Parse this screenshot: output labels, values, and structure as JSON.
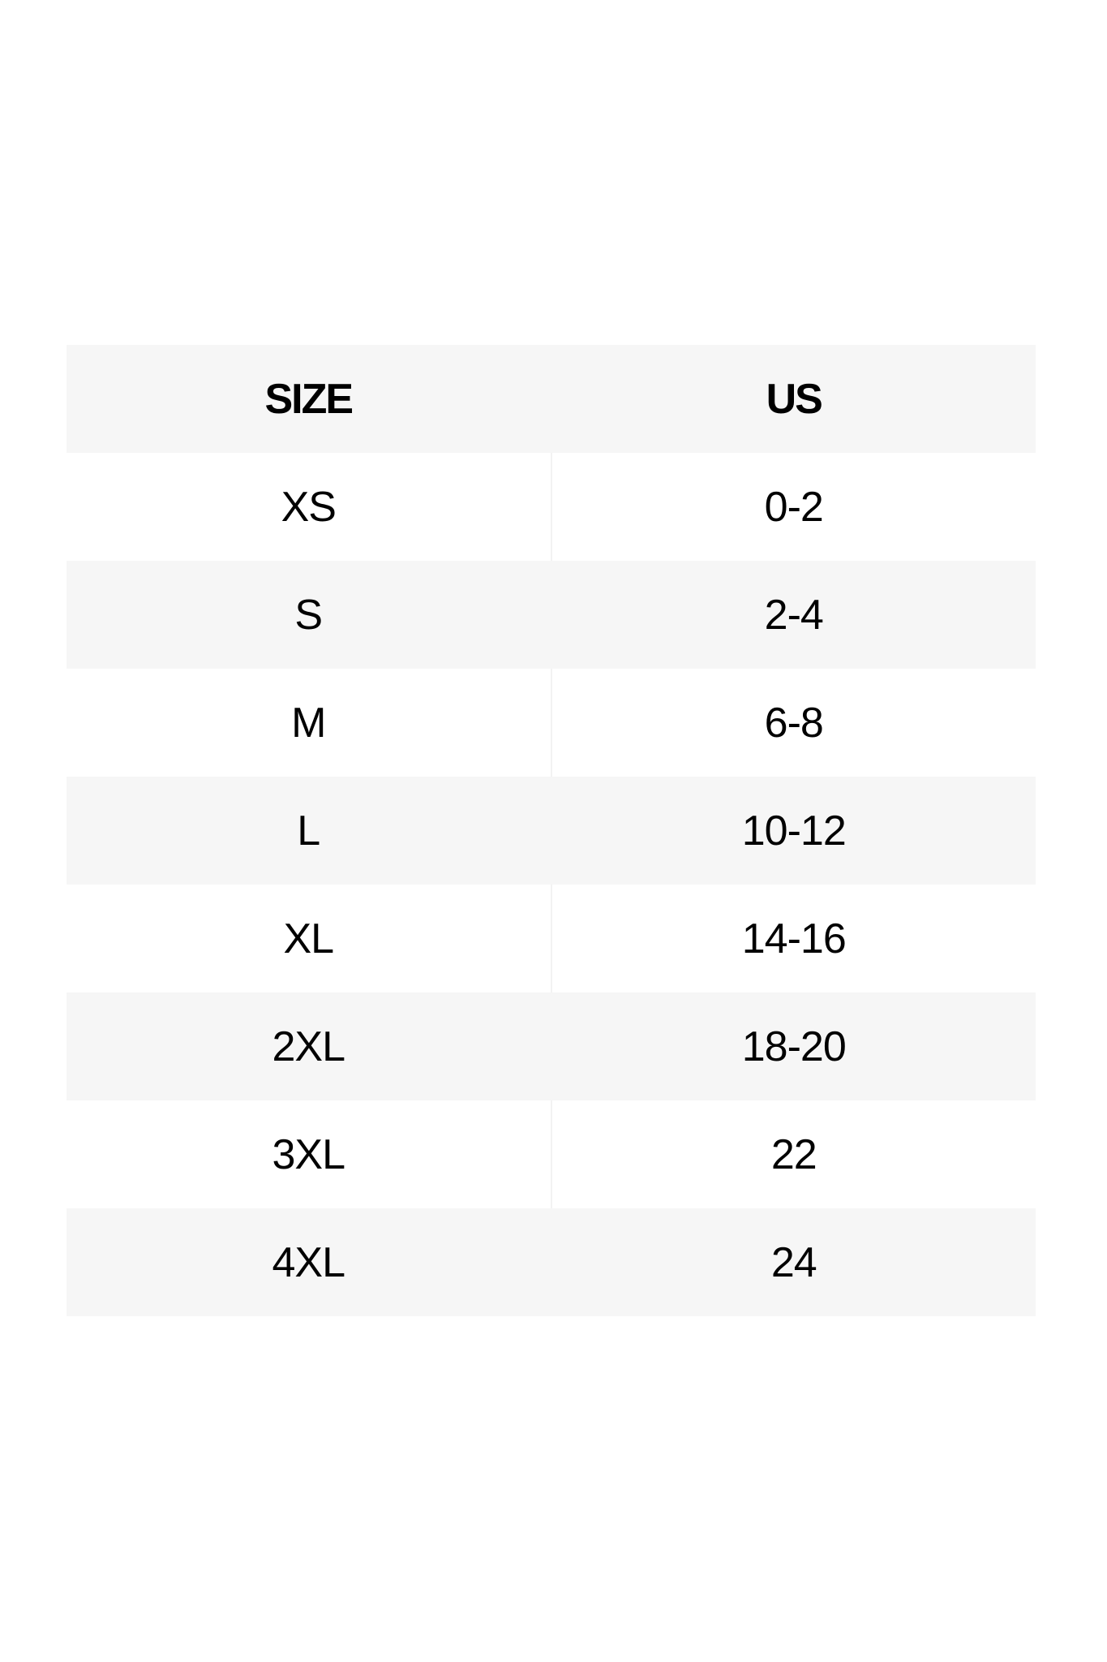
{
  "table": {
    "headers": [
      "SIZE",
      "US"
    ],
    "rows": [
      [
        "XS",
        "0-2"
      ],
      [
        "S",
        "2-4"
      ],
      [
        "M",
        "6-8"
      ],
      [
        "L",
        "10-12"
      ],
      [
        "XL",
        "14-16"
      ],
      [
        "2XL",
        "18-20"
      ],
      [
        "3XL",
        "22"
      ],
      [
        "4XL",
        "24"
      ]
    ]
  },
  "colors": {
    "header_bg": "#f6f6f6",
    "stripe_bg": "#f6f6f6",
    "text": "#000000"
  }
}
